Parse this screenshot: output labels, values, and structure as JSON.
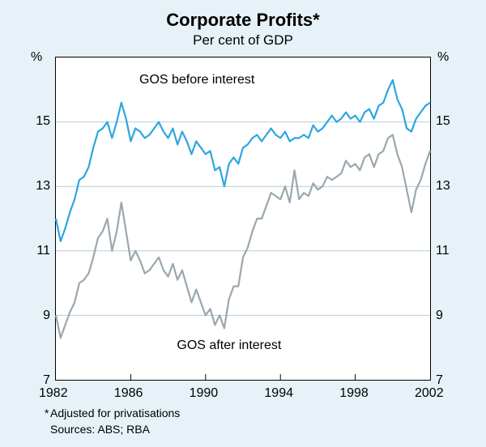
{
  "chart": {
    "type": "line",
    "title": "Corporate Profits*",
    "subtitle": "Per cent of GDP",
    "footnote_marker": "*",
    "footnote": "Adjusted for privatisations",
    "sources": "Sources: ABS; RBA",
    "background_color": "#e6f2f7",
    "plot_background": "#ffffff",
    "grid_color": "#b8cdd6",
    "axis_color": "#000000",
    "title_fontsize": 22,
    "subtitle_fontsize": 17,
    "label_fontsize": 16,
    "footnote_fontsize": 14,
    "x": {
      "min": 1982,
      "max": 2002,
      "ticks": [
        1982,
        1986,
        1990,
        1994,
        1998,
        2002
      ],
      "unit": ""
    },
    "y": {
      "min": 7,
      "max": 17,
      "ticks": [
        7,
        9,
        11,
        13,
        15
      ],
      "unit": "%"
    },
    "series": [
      {
        "name": "GOS before interest",
        "label": "GOS before interest",
        "label_pos": {
          "x": 1989.5,
          "y": 16.3
        },
        "color": "#2ca6e0",
        "line_width": 2.2,
        "data": [
          [
            1982.0,
            12.0
          ],
          [
            1982.25,
            11.3
          ],
          [
            1982.5,
            11.7
          ],
          [
            1982.75,
            12.2
          ],
          [
            1983.0,
            12.6
          ],
          [
            1983.25,
            13.2
          ],
          [
            1983.5,
            13.3
          ],
          [
            1983.75,
            13.6
          ],
          [
            1984.0,
            14.2
          ],
          [
            1984.25,
            14.7
          ],
          [
            1984.5,
            14.8
          ],
          [
            1984.75,
            15.0
          ],
          [
            1985.0,
            14.5
          ],
          [
            1985.25,
            15.0
          ],
          [
            1985.5,
            15.6
          ],
          [
            1985.75,
            15.1
          ],
          [
            1986.0,
            14.4
          ],
          [
            1986.25,
            14.8
          ],
          [
            1986.5,
            14.7
          ],
          [
            1986.75,
            14.5
          ],
          [
            1987.0,
            14.6
          ],
          [
            1987.25,
            14.8
          ],
          [
            1987.5,
            15.0
          ],
          [
            1987.75,
            14.7
          ],
          [
            1988.0,
            14.5
          ],
          [
            1988.25,
            14.8
          ],
          [
            1988.5,
            14.3
          ],
          [
            1988.75,
            14.7
          ],
          [
            1989.0,
            14.4
          ],
          [
            1989.25,
            14.0
          ],
          [
            1989.5,
            14.4
          ],
          [
            1989.75,
            14.2
          ],
          [
            1990.0,
            14.0
          ],
          [
            1990.25,
            14.1
          ],
          [
            1990.5,
            13.5
          ],
          [
            1990.75,
            13.6
          ],
          [
            1991.0,
            13.0
          ],
          [
            1991.25,
            13.7
          ],
          [
            1991.5,
            13.9
          ],
          [
            1991.75,
            13.7
          ],
          [
            1992.0,
            14.2
          ],
          [
            1992.25,
            14.3
          ],
          [
            1992.5,
            14.5
          ],
          [
            1992.75,
            14.6
          ],
          [
            1993.0,
            14.4
          ],
          [
            1993.25,
            14.6
          ],
          [
            1993.5,
            14.8
          ],
          [
            1993.75,
            14.6
          ],
          [
            1994.0,
            14.5
          ],
          [
            1994.25,
            14.7
          ],
          [
            1994.5,
            14.4
          ],
          [
            1994.75,
            14.5
          ],
          [
            1995.0,
            14.5
          ],
          [
            1995.25,
            14.6
          ],
          [
            1995.5,
            14.5
          ],
          [
            1995.75,
            14.9
          ],
          [
            1996.0,
            14.7
          ],
          [
            1996.25,
            14.8
          ],
          [
            1996.5,
            15.0
          ],
          [
            1996.75,
            15.2
          ],
          [
            1997.0,
            15.0
          ],
          [
            1997.25,
            15.1
          ],
          [
            1997.5,
            15.3
          ],
          [
            1997.75,
            15.1
          ],
          [
            1998.0,
            15.2
          ],
          [
            1998.25,
            15.0
          ],
          [
            1998.5,
            15.3
          ],
          [
            1998.75,
            15.4
          ],
          [
            1999.0,
            15.1
          ],
          [
            1999.25,
            15.5
          ],
          [
            1999.5,
            15.6
          ],
          [
            1999.75,
            16.0
          ],
          [
            2000.0,
            16.3
          ],
          [
            2000.25,
            15.7
          ],
          [
            2000.5,
            15.4
          ],
          [
            2000.75,
            14.8
          ],
          [
            2001.0,
            14.7
          ],
          [
            2001.25,
            15.1
          ],
          [
            2001.5,
            15.3
          ],
          [
            2001.75,
            15.5
          ],
          [
            2002.0,
            15.6
          ]
        ]
      },
      {
        "name": "GOS after interest",
        "label": "GOS after interest",
        "label_pos": {
          "x": 1991.5,
          "y": 8.1
        },
        "color": "#9aa7ad",
        "line_width": 2.2,
        "data": [
          [
            1982.0,
            9.0
          ],
          [
            1982.25,
            8.3
          ],
          [
            1982.5,
            8.7
          ],
          [
            1982.75,
            9.1
          ],
          [
            1983.0,
            9.4
          ],
          [
            1983.25,
            10.0
          ],
          [
            1983.5,
            10.1
          ],
          [
            1983.75,
            10.3
          ],
          [
            1984.0,
            10.8
          ],
          [
            1984.25,
            11.4
          ],
          [
            1984.5,
            11.6
          ],
          [
            1984.75,
            12.0
          ],
          [
            1985.0,
            11.0
          ],
          [
            1985.25,
            11.6
          ],
          [
            1985.5,
            12.5
          ],
          [
            1985.75,
            11.6
          ],
          [
            1986.0,
            10.7
          ],
          [
            1986.25,
            11.0
          ],
          [
            1986.5,
            10.7
          ],
          [
            1986.75,
            10.3
          ],
          [
            1987.0,
            10.4
          ],
          [
            1987.25,
            10.6
          ],
          [
            1987.5,
            10.8
          ],
          [
            1987.75,
            10.4
          ],
          [
            1988.0,
            10.2
          ],
          [
            1988.25,
            10.6
          ],
          [
            1988.5,
            10.1
          ],
          [
            1988.75,
            10.4
          ],
          [
            1989.0,
            9.9
          ],
          [
            1989.25,
            9.4
          ],
          [
            1989.5,
            9.8
          ],
          [
            1989.75,
            9.4
          ],
          [
            1990.0,
            9.0
          ],
          [
            1990.25,
            9.2
          ],
          [
            1990.5,
            8.7
          ],
          [
            1990.75,
            9.0
          ],
          [
            1991.0,
            8.6
          ],
          [
            1991.25,
            9.5
          ],
          [
            1991.5,
            9.9
          ],
          [
            1991.75,
            9.9
          ],
          [
            1992.0,
            10.8
          ],
          [
            1992.25,
            11.1
          ],
          [
            1992.5,
            11.6
          ],
          [
            1992.75,
            12.0
          ],
          [
            1993.0,
            12.0
          ],
          [
            1993.25,
            12.4
          ],
          [
            1993.5,
            12.8
          ],
          [
            1993.75,
            12.7
          ],
          [
            1994.0,
            12.6
          ],
          [
            1994.25,
            13.0
          ],
          [
            1994.5,
            12.5
          ],
          [
            1994.75,
            13.5
          ],
          [
            1995.0,
            12.6
          ],
          [
            1995.25,
            12.8
          ],
          [
            1995.5,
            12.7
          ],
          [
            1995.75,
            13.1
          ],
          [
            1996.0,
            12.9
          ],
          [
            1996.25,
            13.0
          ],
          [
            1996.5,
            13.3
          ],
          [
            1996.75,
            13.2
          ],
          [
            1997.0,
            13.3
          ],
          [
            1997.25,
            13.4
          ],
          [
            1997.5,
            13.8
          ],
          [
            1997.75,
            13.6
          ],
          [
            1998.0,
            13.7
          ],
          [
            1998.25,
            13.5
          ],
          [
            1998.5,
            13.9
          ],
          [
            1998.75,
            14.0
          ],
          [
            1999.0,
            13.6
          ],
          [
            1999.25,
            14.0
          ],
          [
            1999.5,
            14.1
          ],
          [
            1999.75,
            14.5
          ],
          [
            2000.0,
            14.6
          ],
          [
            2000.25,
            14.0
          ],
          [
            2000.5,
            13.6
          ],
          [
            2000.75,
            12.9
          ],
          [
            2001.0,
            12.2
          ],
          [
            2001.25,
            12.9
          ],
          [
            2001.5,
            13.2
          ],
          [
            2001.75,
            13.7
          ],
          [
            2002.0,
            14.1
          ]
        ]
      }
    ]
  }
}
